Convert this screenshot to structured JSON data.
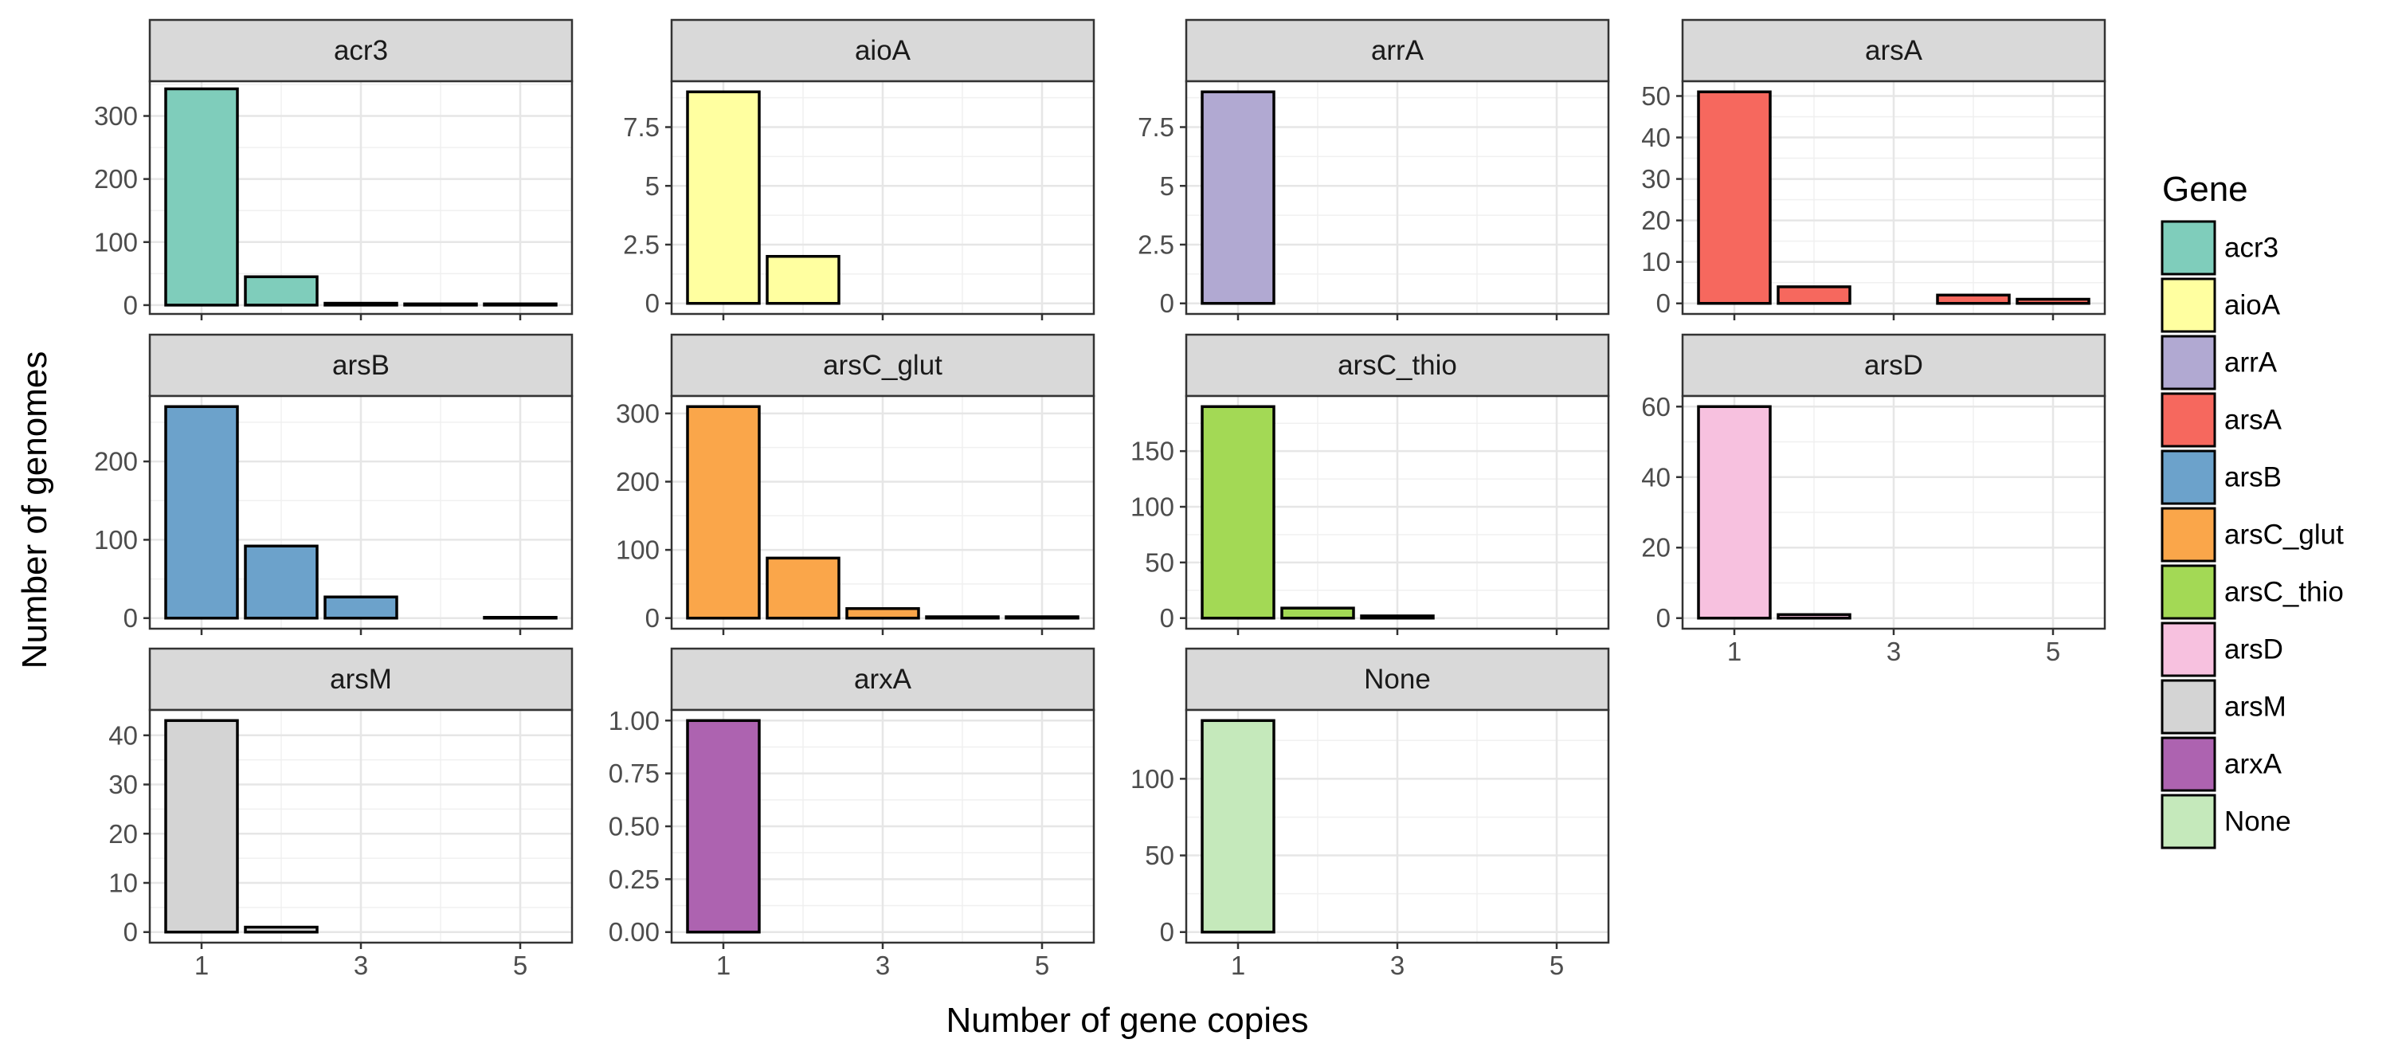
{
  "chart_data": {
    "type": "bar",
    "layout": "faceted grid, 4 columns, shared x axis",
    "xlabel": "Number of gene copies",
    "ylabel": "Number of genomes",
    "x_ticks": [
      1,
      3,
      5
    ],
    "xlim": [
      0.35,
      5.65
    ],
    "legend": {
      "title": "Gene",
      "placement": "right",
      "entries": [
        {
          "name": "acr3",
          "color": "#7fcdbb"
        },
        {
          "name": "aioA",
          "color": "#ffffa0"
        },
        {
          "name": "arrA",
          "color": "#b1a9d2"
        },
        {
          "name": "arsA",
          "color": "#f6685e"
        },
        {
          "name": "arsB",
          "color": "#6ca2cb"
        },
        {
          "name": "arsC_glut",
          "color": "#faa64a"
        },
        {
          "name": "arsC_thio",
          "color": "#a3d955"
        },
        {
          "name": "arsD",
          "color": "#f7c1df"
        },
        {
          "name": "arsM",
          "color": "#d4d4d4"
        },
        {
          "name": "arxA",
          "color": "#ad63b0"
        },
        {
          "name": "None",
          "color": "#c5e9bb"
        }
      ]
    },
    "panels": [
      {
        "title": "acr3",
        "color": "#7fcdbb",
        "ylim": [
          -14,
          355
        ],
        "y_ticks": [
          0,
          100,
          200,
          300
        ],
        "bars": [
          {
            "x": 1,
            "value": 343
          },
          {
            "x": 2,
            "value": 45
          },
          {
            "x": 3,
            "value": 3
          },
          {
            "x": 4,
            "value": 2
          },
          {
            "x": 5,
            "value": 2
          }
        ]
      },
      {
        "title": "aioA",
        "color": "#ffffa0",
        "ylim": [
          -0.45,
          9.45
        ],
        "y_ticks": [
          0.0,
          2.5,
          5.0,
          7.5
        ],
        "bars": [
          {
            "x": 1,
            "value": 9
          },
          {
            "x": 2,
            "value": 2
          }
        ]
      },
      {
        "title": "arrA",
        "color": "#b1a9d2",
        "ylim": [
          -0.45,
          9.45
        ],
        "y_ticks": [
          0.0,
          2.5,
          5.0,
          7.5
        ],
        "bars": [
          {
            "x": 1,
            "value": 9
          }
        ]
      },
      {
        "title": "arsA",
        "color": "#f6685e",
        "ylim": [
          -2.55,
          53.55
        ],
        "y_ticks": [
          0,
          10,
          20,
          30,
          40,
          50
        ],
        "bars": [
          {
            "x": 1,
            "value": 51
          },
          {
            "x": 2,
            "value": 4
          },
          {
            "x": 4,
            "value": 2
          },
          {
            "x": 5,
            "value": 1
          }
        ]
      },
      {
        "title": "arsB",
        "color": "#6ca2cb",
        "ylim": [
          -13.5,
          283.5
        ],
        "y_ticks": [
          0,
          100,
          200
        ],
        "bars": [
          {
            "x": 1,
            "value": 270
          },
          {
            "x": 2,
            "value": 92
          },
          {
            "x": 3,
            "value": 27
          },
          {
            "x": 5,
            "value": 1
          }
        ]
      },
      {
        "title": "arsC_glut",
        "color": "#faa64a",
        "ylim": [
          -15.5,
          325.5
        ],
        "y_ticks": [
          0,
          100,
          200,
          300
        ],
        "bars": [
          {
            "x": 1,
            "value": 310
          },
          {
            "x": 2,
            "value": 88
          },
          {
            "x": 3,
            "value": 14
          },
          {
            "x": 4,
            "value": 2
          },
          {
            "x": 5,
            "value": 2
          }
        ]
      },
      {
        "title": "arsC_thio",
        "color": "#a3d955",
        "ylim": [
          -9.5,
          199.5
        ],
        "y_ticks": [
          0,
          50,
          100,
          150
        ],
        "bars": [
          {
            "x": 1,
            "value": 190
          },
          {
            "x": 2,
            "value": 9
          },
          {
            "x": 3,
            "value": 2
          }
        ]
      },
      {
        "title": "arsD",
        "color": "#f7c1df",
        "ylim": [
          -3,
          63
        ],
        "y_ticks": [
          0,
          20,
          40,
          60
        ],
        "bars": [
          {
            "x": 1,
            "value": 60
          },
          {
            "x": 2,
            "value": 1
          }
        ]
      },
      {
        "title": "arsM",
        "color": "#d4d4d4",
        "ylim": [
          -2.15,
          45.15
        ],
        "y_ticks": [
          0,
          10,
          20,
          30,
          40
        ],
        "bars": [
          {
            "x": 1,
            "value": 43
          },
          {
            "x": 2,
            "value": 1
          }
        ]
      },
      {
        "title": "arxA",
        "color": "#ad63b0",
        "ylim": [
          -0.05,
          1.05
        ],
        "y_ticks": [
          "0.00",
          "0.25",
          "0.50",
          "0.75",
          "1.00"
        ],
        "bars": [
          {
            "x": 1,
            "value": 1
          }
        ]
      },
      {
        "title": "None",
        "color": "#c5e9bb",
        "ylim": [
          -6.9,
          144.9
        ],
        "y_ticks": [
          0,
          50,
          100
        ],
        "bars": [
          {
            "x": 1,
            "value": 138
          }
        ]
      }
    ]
  }
}
